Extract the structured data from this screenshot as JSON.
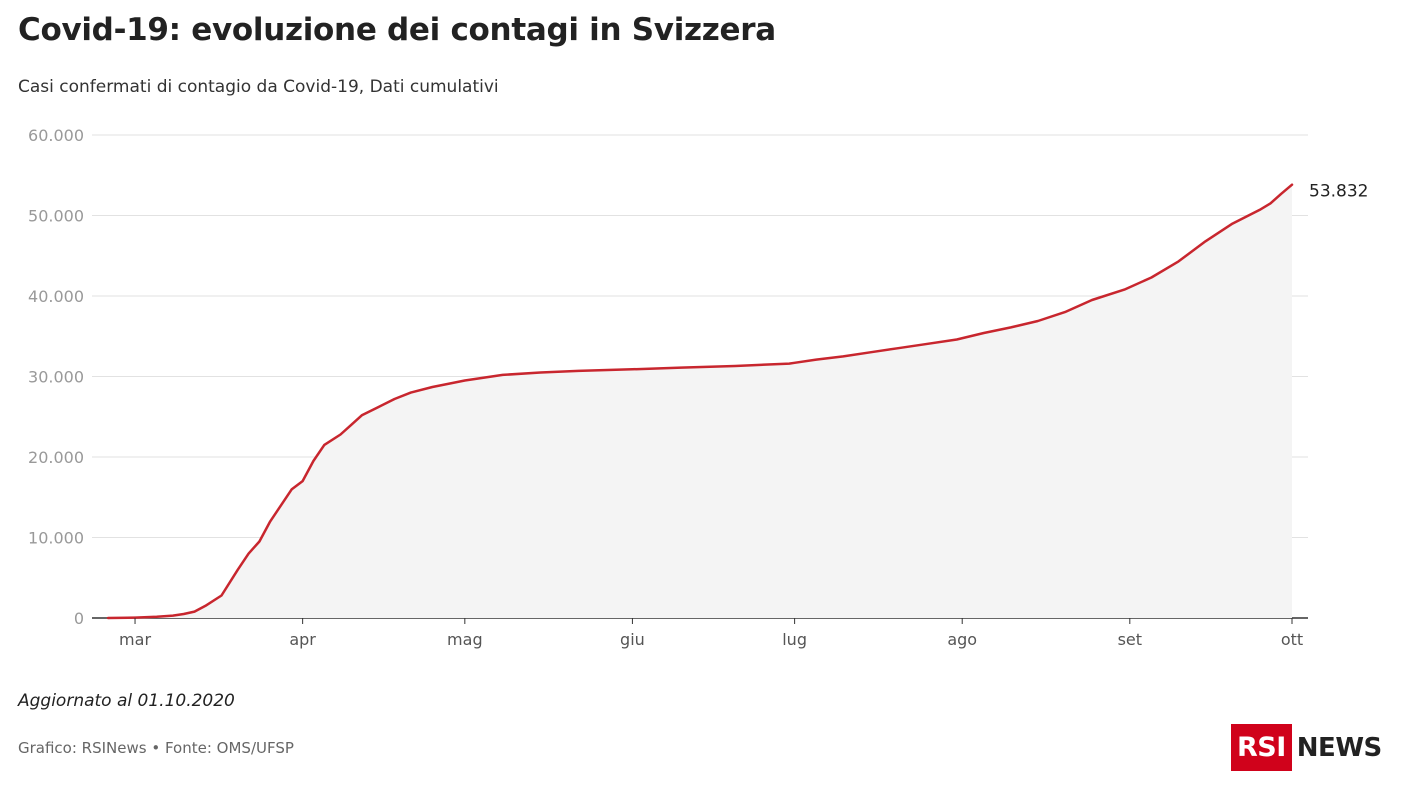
{
  "header": {
    "title": "Covid-19: evoluzione dei contagi in Svizzera",
    "subtitle": "Casi confermati di contagio da Covid-19, Dati cumulativi"
  },
  "footer": {
    "updated": "Aggiornato al 01.10.2020",
    "source": "Grafico: RSINews • Fonte: OMS/UFSP"
  },
  "logo": {
    "box_text": "RSI",
    "word": "NEWS",
    "color": "#d0021b"
  },
  "chart_data": {
    "type": "area",
    "title": "Covid-19: evoluzione dei contagi in Svizzera",
    "subtitle": "Casi confermati di contagio da Covid-19, Dati cumulativi",
    "xlabel": "",
    "ylabel": "",
    "ylim": [
      0,
      60000
    ],
    "y_ticks": [
      0,
      10000,
      20000,
      30000,
      40000,
      50000,
      60000
    ],
    "y_tick_labels": [
      "0",
      "10.000",
      "20.000",
      "30.000",
      "40.000",
      "50.000",
      "60.000"
    ],
    "x_tick_labels": [
      "mar",
      "apr",
      "mag",
      "giu",
      "lug",
      "ago",
      "set",
      "ott"
    ],
    "x_tick_dates": [
      "2020-03-01",
      "2020-04-01",
      "2020-05-01",
      "2020-06-01",
      "2020-07-01",
      "2020-08-01",
      "2020-09-01",
      "2020-10-01"
    ],
    "xlim": [
      "2020-02-25",
      "2020-10-01"
    ],
    "grid": true,
    "line_color": "#c8262e",
    "fill_color": "#f4f4f4",
    "end_label": "53.832",
    "series": [
      {
        "x": [
          "2020-02-25",
          "2020-03-01",
          "2020-03-05",
          "2020-03-08",
          "2020-03-10",
          "2020-03-12",
          "2020-03-14",
          "2020-03-17",
          "2020-03-20",
          "2020-03-22",
          "2020-03-24",
          "2020-03-26",
          "2020-03-28",
          "2020-03-30",
          "2020-04-01",
          "2020-04-03",
          "2020-04-05",
          "2020-04-08",
          "2020-04-10",
          "2020-04-12",
          "2020-04-15",
          "2020-04-18",
          "2020-04-21",
          "2020-04-25",
          "2020-05-01",
          "2020-05-08",
          "2020-05-15",
          "2020-05-22",
          "2020-06-01",
          "2020-06-10",
          "2020-06-20",
          "2020-06-30",
          "2020-07-01",
          "2020-07-05",
          "2020-07-10",
          "2020-07-15",
          "2020-07-20",
          "2020-07-25",
          "2020-07-31",
          "2020-08-05",
          "2020-08-10",
          "2020-08-15",
          "2020-08-20",
          "2020-08-25",
          "2020-08-31",
          "2020-09-05",
          "2020-09-10",
          "2020-09-15",
          "2020-09-20",
          "2020-09-25",
          "2020-09-27",
          "2020-09-29",
          "2020-10-01"
        ],
        "values": [
          0,
          50,
          150,
          300,
          500,
          800,
          1500,
          2800,
          6000,
          8000,
          9500,
          12000,
          14000,
          16000,
          17000,
          19500,
          21500,
          22800,
          24000,
          25200,
          26200,
          27200,
          28000,
          28700,
          29500,
          30200,
          30500,
          30700,
          30900,
          31100,
          31300,
          31600,
          31700,
          32100,
          32500,
          33000,
          33500,
          34000,
          34600,
          35400,
          36100,
          36900,
          38000,
          39500,
          40800,
          42300,
          44300,
          46800,
          49000,
          50700,
          51500,
          52700,
          53832
        ]
      }
    ]
  }
}
